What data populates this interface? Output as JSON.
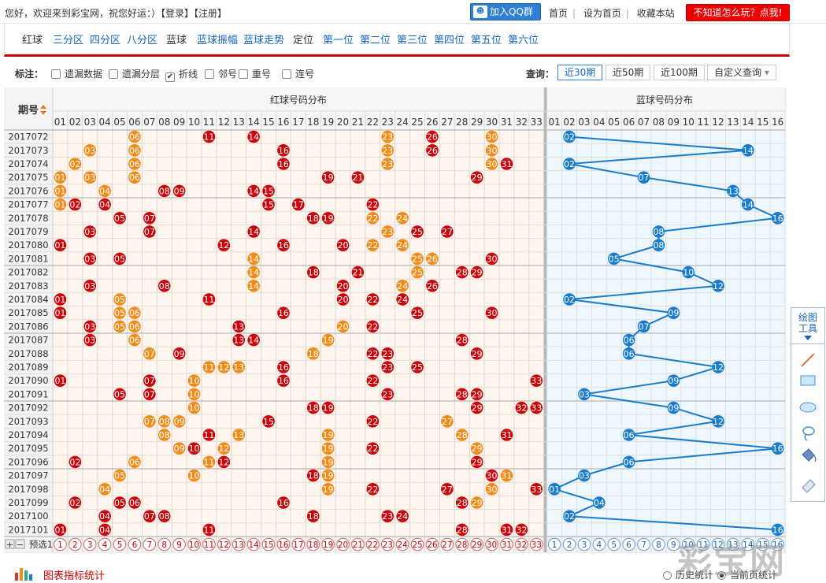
{
  "header": {
    "welcome": "您好，欢迎来到彩宝网，祝您好运：）",
    "login": "【登录】",
    "register": "【注册】",
    "qq_button": "加入QQ群",
    "links": [
      "首页",
      "设为首页",
      "收藏本站"
    ],
    "help_button": "不知道怎么玩？点我!"
  },
  "nav": {
    "items": [
      {
        "label": "红球",
        "active": false
      },
      {
        "label": "三分区",
        "active": true
      },
      {
        "label": "四分区",
        "active": true
      },
      {
        "label": "八分区",
        "active": true
      },
      {
        "label": "蓝球",
        "active": false
      },
      {
        "label": "蓝球振幅",
        "active": true
      },
      {
        "label": "蓝球走势",
        "active": true
      },
      {
        "label": "定位",
        "active": false
      },
      {
        "label": "第一位",
        "active": true
      },
      {
        "label": "第二位",
        "active": true
      },
      {
        "label": "第三位",
        "active": true
      },
      {
        "label": "第四位",
        "active": true
      },
      {
        "label": "第五位",
        "active": true
      },
      {
        "label": "第六位",
        "active": true
      }
    ]
  },
  "options": {
    "label": "标注：",
    "checkboxes": [
      {
        "label": "遗漏数据",
        "checked": false
      },
      {
        "label": "遗漏分层",
        "checked": false
      },
      {
        "label": "折线",
        "checked": true
      },
      {
        "label": "邻号",
        "checked": false
      },
      {
        "label": "重号",
        "checked": false
      },
      {
        "label": "连号",
        "checked": false
      }
    ],
    "query_label": "查询：",
    "query_buttons": [
      "近30期",
      "近50期",
      "近100期"
    ],
    "custom_query": "自定义查询",
    "active_query": 0
  },
  "table": {
    "period_header": "期号",
    "red_header": "红球号码分布",
    "blue_header": "蓝球号码分布",
    "preselect_label": "预选1",
    "red_count": 33,
    "blue_count": 16,
    "rows": [
      {
        "period": "2017072",
        "red": [
          [
            6,
            "o"
          ],
          [
            11,
            "r"
          ],
          [
            14,
            "r"
          ],
          [
            23,
            "o"
          ],
          [
            26,
            "r"
          ],
          [
            30,
            "o"
          ]
        ],
        "blue": 2
      },
      {
        "period": "2017073",
        "red": [
          [
            3,
            "o"
          ],
          [
            6,
            "o"
          ],
          [
            16,
            "r"
          ],
          [
            23,
            "o"
          ],
          [
            26,
            "r"
          ],
          [
            30,
            "o"
          ]
        ],
        "blue": 14
      },
      {
        "period": "2017074",
        "red": [
          [
            2,
            "o"
          ],
          [
            6,
            "o"
          ],
          [
            16,
            "r"
          ],
          [
            23,
            "o"
          ],
          [
            30,
            "o"
          ],
          [
            31,
            "r"
          ]
        ],
        "blue": 2
      },
      {
        "period": "2017075",
        "red": [
          [
            1,
            "o"
          ],
          [
            3,
            "o"
          ],
          [
            6,
            "o"
          ],
          [
            19,
            "r"
          ],
          [
            21,
            "r"
          ],
          [
            29,
            "r"
          ]
        ],
        "blue": 7
      },
      {
        "period": "2017076",
        "red": [
          [
            1,
            "o"
          ],
          [
            4,
            "o"
          ],
          [
            8,
            "r"
          ],
          [
            9,
            "r"
          ],
          [
            14,
            "r"
          ],
          [
            15,
            "r"
          ]
        ],
        "blue": 13
      },
      {
        "period": "2017077",
        "red": [
          [
            1,
            "o"
          ],
          [
            2,
            "r"
          ],
          [
            4,
            "r"
          ],
          [
            15,
            "r"
          ],
          [
            17,
            "r"
          ],
          [
            22,
            "r"
          ]
        ],
        "blue": 14
      },
      {
        "period": "2017078",
        "red": [
          [
            5,
            "r"
          ],
          [
            7,
            "r"
          ],
          [
            18,
            "r"
          ],
          [
            19,
            "r"
          ],
          [
            22,
            "o"
          ],
          [
            24,
            "o"
          ]
        ],
        "blue": 16
      },
      {
        "period": "2017079",
        "red": [
          [
            3,
            "r"
          ],
          [
            7,
            "r"
          ],
          [
            14,
            "r"
          ],
          [
            23,
            "o"
          ],
          [
            25,
            "r"
          ],
          [
            27,
            "r"
          ]
        ],
        "blue": 8
      },
      {
        "period": "2017080",
        "red": [
          [
            1,
            "r"
          ],
          [
            12,
            "r"
          ],
          [
            16,
            "r"
          ],
          [
            20,
            "r"
          ],
          [
            22,
            "o"
          ],
          [
            24,
            "o"
          ]
        ],
        "blue": 8
      },
      {
        "period": "2017081",
        "red": [
          [
            3,
            "r"
          ],
          [
            5,
            "r"
          ],
          [
            14,
            "o"
          ],
          [
            25,
            "o"
          ],
          [
            26,
            "o"
          ],
          [
            30,
            "r"
          ]
        ],
        "blue": 5
      },
      {
        "period": "2017082",
        "red": [
          [
            14,
            "o"
          ],
          [
            18,
            "r"
          ],
          [
            21,
            "r"
          ],
          [
            25,
            "o"
          ],
          [
            28,
            "r"
          ],
          [
            29,
            "r"
          ]
        ],
        "blue": 10
      },
      {
        "period": "2017083",
        "red": [
          [
            3,
            "r"
          ],
          [
            8,
            "r"
          ],
          [
            14,
            "o"
          ],
          [
            20,
            "r"
          ],
          [
            24,
            "o"
          ],
          [
            26,
            "r"
          ]
        ],
        "blue": 12
      },
      {
        "period": "2017084",
        "red": [
          [
            1,
            "r"
          ],
          [
            5,
            "o"
          ],
          [
            11,
            "r"
          ],
          [
            20,
            "r"
          ],
          [
            22,
            "r"
          ],
          [
            24,
            "r"
          ]
        ],
        "blue": 2
      },
      {
        "period": "2017085",
        "red": [
          [
            1,
            "r"
          ],
          [
            5,
            "o"
          ],
          [
            6,
            "o"
          ],
          [
            16,
            "r"
          ],
          [
            25,
            "r"
          ],
          [
            30,
            "r"
          ]
        ],
        "blue": 9
      },
      {
        "period": "2017086",
        "red": [
          [
            3,
            "r"
          ],
          [
            5,
            "o"
          ],
          [
            6,
            "o"
          ],
          [
            13,
            "r"
          ],
          [
            20,
            "o"
          ],
          [
            22,
            "r"
          ]
        ],
        "blue": 7
      },
      {
        "period": "2017087",
        "red": [
          [
            3,
            "r"
          ],
          [
            6,
            "o"
          ],
          [
            13,
            "r"
          ],
          [
            14,
            "r"
          ],
          [
            19,
            "o"
          ],
          [
            28,
            "r"
          ]
        ],
        "blue": 6
      },
      {
        "period": "2017088",
        "red": [
          [
            7,
            "o"
          ],
          [
            9,
            "r"
          ],
          [
            18,
            "o"
          ],
          [
            22,
            "r"
          ],
          [
            23,
            "r"
          ],
          [
            29,
            "r"
          ]
        ],
        "blue": 6
      },
      {
        "period": "2017089",
        "red": [
          [
            11,
            "o"
          ],
          [
            12,
            "o"
          ],
          [
            13,
            "o"
          ],
          [
            16,
            "r"
          ],
          [
            23,
            "r"
          ],
          [
            25,
            "r"
          ]
        ],
        "blue": 12
      },
      {
        "period": "2017090",
        "red": [
          [
            1,
            "r"
          ],
          [
            7,
            "r"
          ],
          [
            10,
            "o"
          ],
          [
            16,
            "r"
          ],
          [
            22,
            "r"
          ],
          [
            33,
            "r"
          ]
        ],
        "blue": 9
      },
      {
        "period": "2017091",
        "red": [
          [
            5,
            "r"
          ],
          [
            7,
            "r"
          ],
          [
            10,
            "o"
          ],
          [
            23,
            "r"
          ],
          [
            28,
            "r"
          ],
          [
            29,
            "r"
          ]
        ],
        "blue": 3
      },
      {
        "period": "2017092",
        "red": [
          [
            10,
            "o"
          ],
          [
            18,
            "r"
          ],
          [
            19,
            "r"
          ],
          [
            29,
            "r"
          ],
          [
            32,
            "r"
          ],
          [
            33,
            "r"
          ]
        ],
        "blue": 9
      },
      {
        "period": "2017093",
        "red": [
          [
            7,
            "o"
          ],
          [
            8,
            "o"
          ],
          [
            9,
            "o"
          ],
          [
            15,
            "r"
          ],
          [
            22,
            "r"
          ],
          [
            27,
            "o"
          ]
        ],
        "blue": 12
      },
      {
        "period": "2017094",
        "red": [
          [
            8,
            "o"
          ],
          [
            11,
            "r"
          ],
          [
            13,
            "o"
          ],
          [
            19,
            "o"
          ],
          [
            28,
            "o"
          ],
          [
            31,
            "r"
          ]
        ],
        "blue": 6
      },
      {
        "period": "2017095",
        "red": [
          [
            9,
            "o"
          ],
          [
            10,
            "r"
          ],
          [
            12,
            "o"
          ],
          [
            19,
            "o"
          ],
          [
            22,
            "r"
          ],
          [
            29,
            "o"
          ]
        ],
        "blue": 16
      },
      {
        "period": "2017096",
        "red": [
          [
            2,
            "r"
          ],
          [
            6,
            "o"
          ],
          [
            11,
            "o"
          ],
          [
            12,
            "r"
          ],
          [
            19,
            "o"
          ],
          [
            29,
            "r"
          ]
        ],
        "blue": 6
      },
      {
        "period": "2017097",
        "red": [
          [
            5,
            "o"
          ],
          [
            10,
            "o"
          ],
          [
            18,
            "r"
          ],
          [
            19,
            "o"
          ],
          [
            30,
            "r"
          ],
          [
            31,
            "o"
          ]
        ],
        "blue": 3
      },
      {
        "period": "2017098",
        "red": [
          [
            4,
            "o"
          ],
          [
            19,
            "o"
          ],
          [
            22,
            "r"
          ],
          [
            27,
            "r"
          ],
          [
            30,
            "o"
          ],
          [
            33,
            "r"
          ]
        ],
        "blue": 1
      },
      {
        "period": "2017099",
        "red": [
          [
            2,
            "r"
          ],
          [
            5,
            "r"
          ],
          [
            6,
            "r"
          ],
          [
            16,
            "r"
          ],
          [
            28,
            "r"
          ],
          [
            29,
            "o"
          ]
        ],
        "blue": 4
      },
      {
        "period": "2017100",
        "red": [
          [
            4,
            "r"
          ],
          [
            7,
            "r"
          ],
          [
            8,
            "r"
          ],
          [
            18,
            "r"
          ],
          [
            23,
            "r"
          ],
          [
            24,
            "r"
          ]
        ],
        "blue": 2
      },
      {
        "period": "2017101",
        "red": [
          [
            1,
            "r"
          ],
          [
            4,
            "r"
          ],
          [
            11,
            "r"
          ],
          [
            28,
            "r"
          ],
          [
            31,
            "r"
          ],
          [
            32,
            "r"
          ]
        ],
        "blue": 16
      }
    ]
  },
  "tools": {
    "title_line1": "绘图",
    "title_line2": "工具",
    "items": [
      "line-tool-icon",
      "rectangle-tool-icon",
      "ellipse-tool-icon",
      "lasso-tool-icon",
      "fill-tool-icon",
      "eraser-tool-icon"
    ]
  },
  "footer": {
    "stats_label": "图表指标统计",
    "radio_history": "历史统计",
    "radio_current": "当前页统计",
    "radio_selected": "current"
  },
  "watermark": "彩宝网",
  "colors": {
    "red_ball": "#c8060c",
    "orange_ball": "#f08c1a",
    "blue_ball": "#1a7ccc",
    "red_bg": "#fef5ee",
    "blue_bg": "#eef7fd",
    "accent_red": "#cc0000"
  }
}
